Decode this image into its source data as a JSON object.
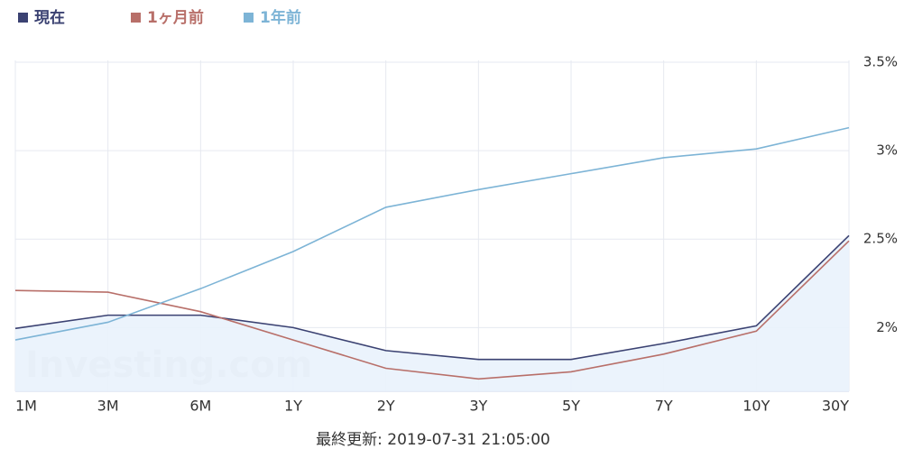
{
  "chart_data": {
    "type": "line",
    "categories": [
      "1M",
      "3M",
      "6M",
      "1Y",
      "2Y",
      "3Y",
      "5Y",
      "7Y",
      "10Y",
      "30Y"
    ],
    "series": [
      {
        "name": "現在",
        "color": "#3b4272",
        "values": [
          1.995,
          2.07,
          2.07,
          2.0,
          1.87,
          1.82,
          1.82,
          1.91,
          2.01,
          2.52
        ],
        "area": true
      },
      {
        "name": "1ヶ月前",
        "color": "#b86f69",
        "values": [
          2.21,
          2.2,
          2.09,
          1.93,
          1.77,
          1.71,
          1.75,
          1.85,
          1.98,
          2.49
        ]
      },
      {
        "name": "1年前",
        "color": "#7db4d6",
        "values": [
          1.93,
          2.03,
          2.22,
          2.43,
          2.68,
          2.78,
          2.87,
          2.96,
          3.01,
          3.13
        ]
      }
    ],
    "ylim": [
      1.64,
      3.5
    ],
    "yticks": [
      {
        "value": 2,
        "label": "2%"
      },
      {
        "value": 2.5,
        "label": "2.5%"
      },
      {
        "value": 3,
        "label": "3%"
      },
      {
        "value": 3.5,
        "label": "3.5%"
      }
    ],
    "grid": true,
    "legend": "top-left",
    "watermark": "Investing.com",
    "footer": "最終更新: 2019-07-31 21:05:00"
  }
}
